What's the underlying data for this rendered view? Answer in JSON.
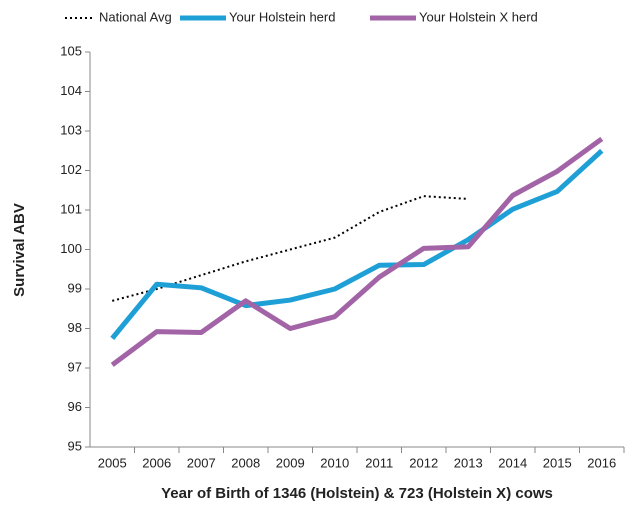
{
  "chart_data": {
    "type": "line",
    "x_label": "Year of Birth of 1346 (Holstein) & 723 (Holstein X) cows",
    "y_label": "Survival ABV",
    "categories": [
      "2005",
      "2006",
      "2007",
      "2008",
      "2009",
      "2010",
      "2011",
      "2012",
      "2013",
      "2014",
      "2015",
      "2016"
    ],
    "series": [
      {
        "name": "National Avg",
        "color": "#000000",
        "line_style": "dotted",
        "values": [
          98.7,
          99.0,
          99.35,
          99.7,
          100.0,
          100.3,
          100.95,
          101.35,
          101.28,
          null,
          null,
          null
        ]
      },
      {
        "name": "Your Holstein herd",
        "color": "#1e9fd6",
        "line_style": "solid",
        "values": [
          97.75,
          99.12,
          99.03,
          98.58,
          98.72,
          99.0,
          99.6,
          99.62,
          100.25,
          101.02,
          101.47,
          102.5
        ]
      },
      {
        "name": "Your Holstein X herd",
        "color": "#a264a6",
        "line_style": "solid",
        "values": [
          97.08,
          97.92,
          97.9,
          98.7,
          98.0,
          98.3,
          99.3,
          100.03,
          100.07,
          101.37,
          101.98,
          102.8
        ]
      }
    ],
    "ylim": [
      95,
      105
    ],
    "yticks": [
      95,
      96,
      97,
      98,
      99,
      100,
      101,
      102,
      103,
      104,
      105
    ],
    "grid": false,
    "legend": "top"
  }
}
